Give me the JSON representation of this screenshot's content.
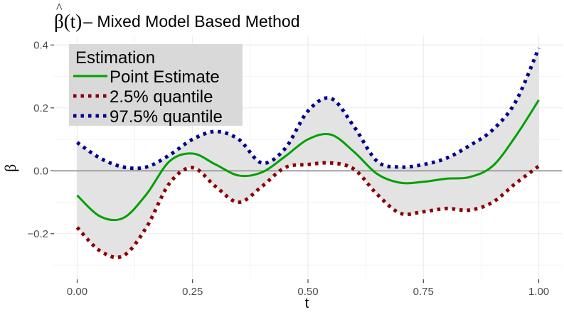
{
  "title": {
    "symbol": "β",
    "hat": "^",
    "argument": "(t)",
    "text": "– Mixed Model Based Method"
  },
  "chart_data": {
    "type": "line",
    "xlabel": "t",
    "ylabel_symbol": "β",
    "ylabel_hat": "^",
    "xlim": [
      -0.05,
      1.05
    ],
    "ylim": [
      -0.345,
      0.43
    ],
    "xticks": [
      0.0,
      0.25,
      0.5,
      0.75,
      1.0
    ],
    "xtick_labels": [
      "0.00",
      "0.25",
      "0.50",
      "0.75",
      "1.00"
    ],
    "yticks": [
      -0.2,
      0.0,
      0.2,
      0.4
    ],
    "ytick_labels": [
      "−0.2",
      "0.0",
      "0.2",
      "0.4"
    ],
    "reference_line_y": 0,
    "grid": true,
    "legend": {
      "title": "Estimation",
      "position": "top-left",
      "entries": [
        "Point Estimate",
        "2.5% quantile",
        "97.5% quantile"
      ]
    },
    "x": [
      0.0,
      0.05,
      0.1,
      0.15,
      0.2,
      0.25,
      0.3,
      0.35,
      0.4,
      0.45,
      0.5,
      0.55,
      0.6,
      0.65,
      0.7,
      0.75,
      0.8,
      0.85,
      0.9,
      0.95,
      1.0
    ],
    "series": [
      {
        "name": "Point Estimate",
        "color": "#00a000",
        "dash": "solid",
        "values": [
          -0.078,
          -0.145,
          -0.15,
          -0.075,
          0.03,
          0.055,
          0.02,
          -0.015,
          -0.005,
          0.045,
          0.1,
          0.115,
          0.06,
          -0.01,
          -0.038,
          -0.035,
          -0.025,
          -0.02,
          0.015,
          0.11,
          0.225
        ]
      },
      {
        "name": "2.5% quantile",
        "color": "#8b0000",
        "dash": "dotted",
        "values": [
          -0.18,
          -0.255,
          -0.27,
          -0.18,
          -0.04,
          0.01,
          -0.05,
          -0.1,
          -0.05,
          0.01,
          0.02,
          0.025,
          0.005,
          -0.075,
          -0.135,
          -0.13,
          -0.12,
          -0.125,
          -0.1,
          -0.04,
          0.015
        ]
      },
      {
        "name": "97.5% quantile",
        "color": "#00008b",
        "dash": "dotted",
        "values": [
          0.09,
          0.04,
          0.012,
          0.012,
          0.05,
          0.1,
          0.125,
          0.1,
          0.025,
          0.07,
          0.19,
          0.23,
          0.14,
          0.03,
          0.012,
          0.02,
          0.04,
          0.08,
          0.13,
          0.22,
          0.39
        ]
      }
    ]
  }
}
